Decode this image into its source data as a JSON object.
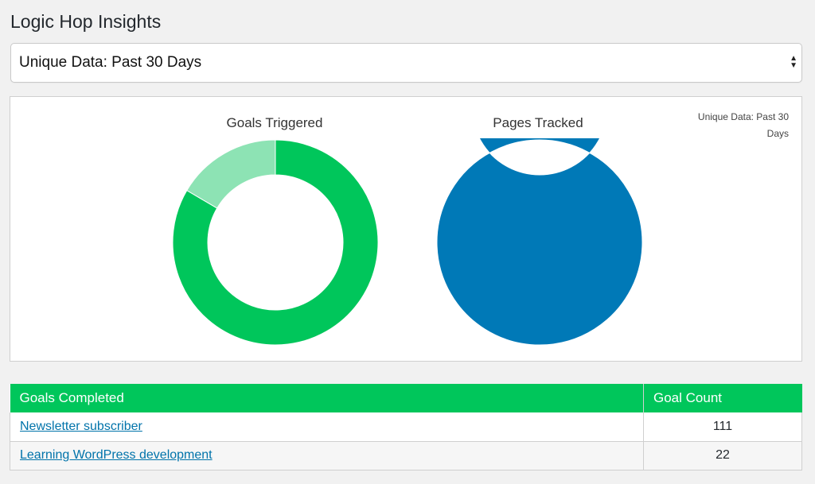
{
  "header": {
    "title": "Logic Hop Insights"
  },
  "range_select": {
    "selected": "Unique Data: Past 30 Days",
    "arrow_up": "▲",
    "arrow_down": "▼"
  },
  "charts": {
    "range_label": "Unique Data: Past 30 Days"
  },
  "chart_data": [
    {
      "type": "pie",
      "title": "Goals Triggered",
      "categories": [
        "Newsletter subscriber",
        "Learning WordPress development"
      ],
      "values": [
        111,
        22
      ],
      "colors": [
        "#00c65b",
        "#8de3b4"
      ]
    },
    {
      "type": "pie",
      "title": "Pages Tracked",
      "categories": [
        ""
      ],
      "values": [
        1
      ],
      "colors": [
        "#0079b7"
      ]
    }
  ],
  "goals_table": {
    "headers": {
      "goal": "Goals Completed",
      "count": "Goal Count"
    },
    "rows": [
      {
        "goal": "Newsletter subscriber",
        "count": "111"
      },
      {
        "goal": "Learning WordPress development",
        "count": "22"
      }
    ]
  },
  "colors": {
    "header_green": "#00c65b",
    "link_blue": "#0073aa"
  }
}
